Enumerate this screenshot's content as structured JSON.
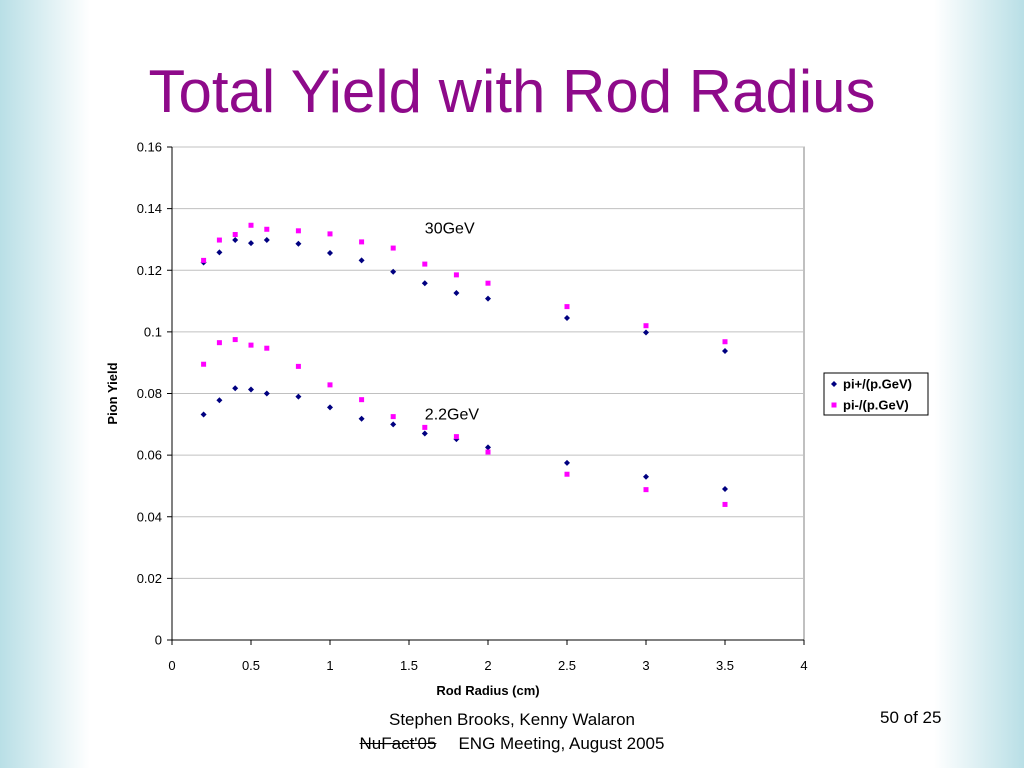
{
  "slide": {
    "title": "Total Yield with Rod Radius",
    "page_number": "50 of 25",
    "footer_line1": "Stephen Brooks, Kenny Walaron",
    "footer_line2_struck": "NuFact'05",
    "footer_line2": "ENG Meeting, August 2005"
  },
  "chart_data": {
    "type": "scatter",
    "title": "",
    "xlabel": "Rod Radius (cm)",
    "ylabel": "Pion Yield",
    "xlim": [
      0,
      4
    ],
    "ylim": [
      0,
      0.16
    ],
    "xticks": [
      "0",
      "0.5",
      "1",
      "1.5",
      "2",
      "2.5",
      "3",
      "3.5",
      "4"
    ],
    "yticks": [
      "0",
      "0.02",
      "0.04",
      "0.06",
      "0.08",
      "0.1",
      "0.12",
      "0.14",
      "0.16"
    ],
    "grid": "horizontal",
    "legend_position": "right",
    "annotations": [
      {
        "text": "30GeV",
        "x": 1.6,
        "y": 0.132
      },
      {
        "text": "2.2GeV",
        "x": 1.6,
        "y": 0.0715
      }
    ],
    "series": [
      {
        "name": "pi+/(p.GeV)",
        "color": "#000080",
        "marker": "diamond",
        "points": [
          [
            0.2,
            0.1225
          ],
          [
            0.3,
            0.1258
          ],
          [
            0.4,
            0.1298
          ],
          [
            0.5,
            0.1288
          ],
          [
            0.6,
            0.1298
          ],
          [
            0.8,
            0.1286
          ],
          [
            1.0,
            0.1256
          ],
          [
            1.2,
            0.1232
          ],
          [
            1.4,
            0.1195
          ],
          [
            1.6,
            0.1158
          ],
          [
            1.8,
            0.1126
          ],
          [
            2.0,
            0.1108
          ],
          [
            2.5,
            0.1045
          ],
          [
            3.0,
            0.0998
          ],
          [
            3.5,
            0.0938
          ],
          [
            0.2,
            0.0732
          ],
          [
            0.3,
            0.0778
          ],
          [
            0.4,
            0.0817
          ],
          [
            0.5,
            0.0813
          ],
          [
            0.6,
            0.08
          ],
          [
            0.8,
            0.079
          ],
          [
            1.0,
            0.0755
          ],
          [
            1.2,
            0.0718
          ],
          [
            1.4,
            0.07
          ],
          [
            1.6,
            0.067
          ],
          [
            1.8,
            0.0652
          ],
          [
            2.0,
            0.0625
          ],
          [
            2.5,
            0.0575
          ],
          [
            3.0,
            0.053
          ],
          [
            3.5,
            0.049
          ]
        ]
      },
      {
        "name": "pi-/(p.GeV)",
        "color": "#ff00ff",
        "marker": "square",
        "points": [
          [
            0.2,
            0.1232
          ],
          [
            0.3,
            0.1298
          ],
          [
            0.4,
            0.1316
          ],
          [
            0.5,
            0.1346
          ],
          [
            0.6,
            0.1333
          ],
          [
            0.8,
            0.1328
          ],
          [
            1.0,
            0.1318
          ],
          [
            1.2,
            0.1292
          ],
          [
            1.4,
            0.1272
          ],
          [
            1.6,
            0.122
          ],
          [
            1.8,
            0.1185
          ],
          [
            2.0,
            0.1158
          ],
          [
            2.5,
            0.1082
          ],
          [
            3.0,
            0.102
          ],
          [
            3.5,
            0.0968
          ],
          [
            0.2,
            0.0895
          ],
          [
            0.3,
            0.0965
          ],
          [
            0.4,
            0.0975
          ],
          [
            0.5,
            0.0957
          ],
          [
            0.6,
            0.0947
          ],
          [
            0.8,
            0.0888
          ],
          [
            1.0,
            0.0828
          ],
          [
            1.2,
            0.078
          ],
          [
            1.4,
            0.0725
          ],
          [
            1.6,
            0.069
          ],
          [
            1.8,
            0.066
          ],
          [
            2.0,
            0.061
          ],
          [
            2.5,
            0.0538
          ],
          [
            3.0,
            0.0488
          ],
          [
            3.5,
            0.044
          ]
        ]
      }
    ]
  }
}
